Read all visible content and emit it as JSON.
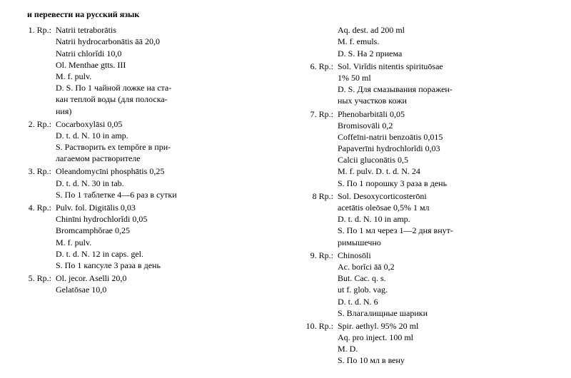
{
  "header_partial": "и перевести на русский язык",
  "left": [
    {
      "num": "1. Rp.:",
      "lines": [
        "Natrii tetraborātis",
        "Natrii hydrocarbonātis āā 20,0",
        "Natrii chlorĭdi 10,0",
        "Ol. Menthae gtts. III",
        "M. f. pulv.",
        "D. S. По 1 чайной ложке на ста-",
        "кан теплой воды (для полоска-",
        "ния)"
      ]
    },
    {
      "num": "2. Rp.:",
      "lines": [
        "Cocarboxylāsi 0,05",
        "D. t. d. N. 10 in amp.",
        "S. Растворить ex tempŏre в при-",
        "лагаемом растворителе"
      ]
    },
    {
      "num": "3. Rp.:",
      "lines": [
        "Oleandomycīni phosphātis 0,25",
        "D. t. d. N. 30 in tab.",
        "S. По 1 таблетке 4—6 раз в сутки"
      ]
    },
    {
      "num": "4. Rp.:",
      "lines": [
        "Pulv. fol. Digitālis 0,03",
        "Chinīni hydrochlorĭdi 0,05",
        "Bromcamphŏrae 0,25",
        "M. f. pulv.",
        "D. t. d. N. 12 in caps. gel.",
        "S. По 1 капсуле 3 раза в день"
      ]
    },
    {
      "num": "5. Rp.:",
      "lines": [
        "Ol. jecor. Aselli 20,0",
        "Gelatōsae 10,0"
      ]
    }
  ],
  "right": [
    {
      "num": "",
      "lines": [
        "Aq. dest. ad 200 ml",
        "M. f. emuls.",
        "D. S. На 2 приема"
      ]
    },
    {
      "num": "6. Rp.:",
      "lines": [
        "Sol. Virĭdis nitentis spirituōsae",
        "1% 50 ml",
        "D. S. Для смазывания поражен-",
        "ных участков кожи"
      ]
    },
    {
      "num": "7. Rp.:",
      "lines": [
        "Phenobarbitāli 0,05",
        "Bromisovāli 0,2",
        "Coffeīni-natrii benzoātis 0,015",
        "Papaverīni hydrochlorĭdi 0,03",
        "Calcii gluconātis 0,5",
        "M. f. pulv. D. t. d. N. 24",
        "S. По 1 порошку 3 раза в день"
      ]
    },
    {
      "num": "8 Rp.:",
      "lines": [
        "Sol. Desoxycorticosterōni",
        "acetātis oleōsae 0,5% 1 мл",
        "D. t. d. N. 10 in amp.",
        "S. По 1 мл через 1—2 дня внут-",
        "римышечно"
      ]
    },
    {
      "num": "9. Rp.:",
      "lines": [
        "Chinosōli",
        "Ac. borĭci āā 0,2",
        "But. Cac. q. s.",
        "ut f. glob. vag.",
        "D. t. d. N. 6",
        "S. Влагалищные шарики"
      ]
    },
    {
      "num": "10. Rp.:",
      "lines": [
        "Spir. aethyl. 95% 20 ml",
        "Aq. pro inject. 100 ml",
        "M. D.",
        "S. По 10 мл в вену"
      ]
    }
  ]
}
